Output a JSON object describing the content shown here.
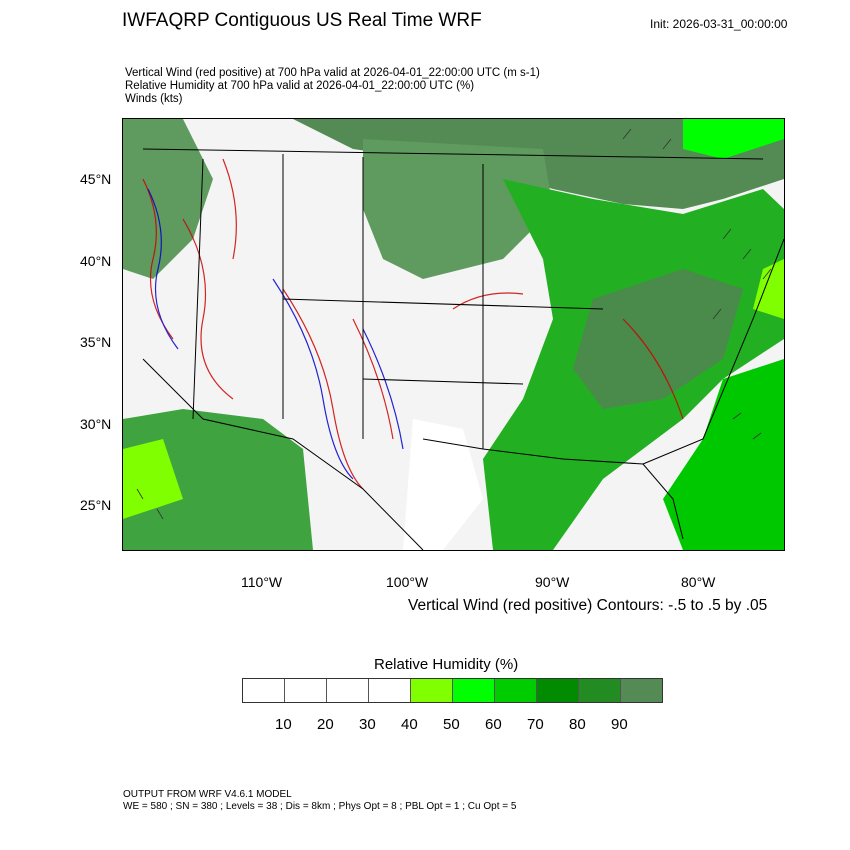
{
  "header": {
    "title": "IWFAQRP Contiguous US Real Time WRF",
    "init": "Init: 2026-03-31_00:00:00",
    "subtitles": [
      "Vertical Wind (red positive) at 700 hPa valid at 2026-04-01_22:00:00 UTC   (m s-1)",
      "Relative Humidity at 700 hPa valid at 2026-04-01_22:00:00 UTC   (%)",
      "Winds   (kts)"
    ]
  },
  "map": {
    "lat_labels": [
      "45°N",
      "40°N",
      "35°N",
      "30°N",
      "25°N"
    ],
    "lon_labels": [
      "110°W",
      "100°W",
      "90°W",
      "80°W"
    ],
    "contour_note": "Vertical Wind (red positive) Contours: -.5 to .5 by .05",
    "colors": {
      "positive": "#cc0000",
      "negative": "#0000cc"
    }
  },
  "colorbar": {
    "title": "Relative Humidity  (%)",
    "labels": [
      "10",
      "20",
      "30",
      "40",
      "50",
      "60",
      "70",
      "80",
      "90"
    ],
    "colors": [
      "#ffffff",
      "#ffffff",
      "#ffffff",
      "#ffffff",
      "#80ff00",
      "#00ff00",
      "#00cd00",
      "#008b00",
      "#228b22",
      "#548b54"
    ]
  },
  "footer": {
    "line1": "OUTPUT FROM WRF V4.6.1 MODEL",
    "line2": "WE = 580 ; SN = 380 ; Levels = 38 ; Dis = 8km ; Phys Opt = 8 ; PBL Opt = 1 ; Cu Opt = 5"
  }
}
